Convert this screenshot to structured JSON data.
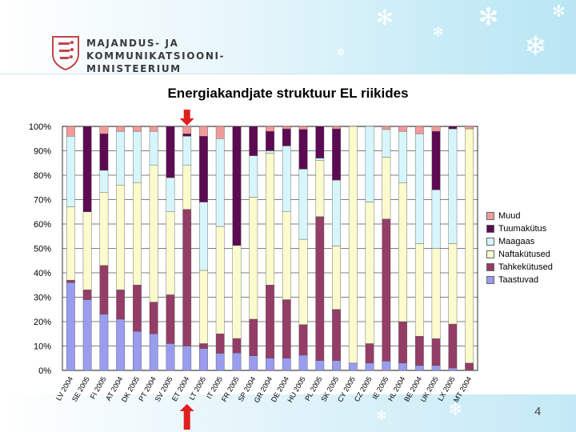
{
  "header": {
    "ministry_lines": [
      "MAJANDUS- JA",
      "KOMMUNIKATSIOONI-",
      "MINISTEERIUM"
    ]
  },
  "slide": {
    "page_number": "4"
  },
  "colors": {
    "Muud": "#f29a9a",
    "Tuumakütus": "#5c0a52",
    "Maagaas": "#d6f6fb",
    "Naftakütused": "#fbfbcd",
    "Tahkekütused": "#943d66",
    "Taastuvad": "#9a9cf0",
    "marker": "#e02020"
  },
  "chart_data": {
    "type": "bar",
    "stacked": "percent",
    "title": "Energiakandjate struktuur EL riikides",
    "y_tick_labels": [
      "0%",
      "10%",
      "20%",
      "30%",
      "40%",
      "50%",
      "60%",
      "70%",
      "80%",
      "90%",
      "100%"
    ],
    "ylim": [
      0,
      100
    ],
    "grid": true,
    "legend_position": "right",
    "categories": [
      "LV 2004",
      "SE 2005",
      "FI 2005",
      "AT 2004",
      "DK 2005",
      "PT 2004",
      "SV 2005",
      "ET 2004",
      "LT 2005",
      "IT 2005",
      "FR 2005",
      "SP 2004",
      "GR 2004",
      "DE 2004",
      "HU 2005",
      "PL 2005",
      "SK 2005",
      "CY 2005",
      "CZ 2005",
      "IE 2005",
      "HL 2004",
      "BE 2004",
      "UK 2005",
      "LX 2005",
      "MT 2004"
    ],
    "highlight_category": "ET 2004",
    "series": [
      {
        "name": "Taastuvad",
        "values": [
          36,
          29,
          23,
          21,
          16,
          15,
          11,
          10,
          9,
          7,
          6,
          6,
          5,
          5,
          5,
          4,
          4,
          3,
          3,
          3,
          3,
          2,
          2,
          1,
          0
        ]
      },
      {
        "name": "Tahkekütused",
        "values": [
          1,
          4,
          20,
          12,
          19,
          13,
          20,
          56,
          2,
          8,
          5,
          15,
          30,
          24,
          10,
          59,
          21,
          0,
          8,
          46,
          17,
          12,
          11,
          18,
          3
        ]
      },
      {
        "name": "Naftakütused",
        "values": [
          30,
          32,
          30,
          43,
          42,
          56,
          34,
          18,
          30,
          44,
          32,
          50,
          54,
          36,
          28,
          23,
          26,
          97,
          58,
          20,
          57,
          38,
          37,
          33,
          96
        ]
      },
      {
        "name": "Maagaas",
        "values": [
          29,
          0,
          9,
          22,
          21,
          14,
          14,
          12,
          28,
          36,
          0,
          17,
          1,
          27,
          23,
          1,
          27,
          0,
          31,
          9,
          21,
          45,
          24,
          47,
          0
        ]
      },
      {
        "name": "Tuumakütus",
        "values": [
          0,
          35,
          15,
          0,
          0,
          0,
          21,
          1,
          27,
          0,
          41,
          12,
          8,
          7,
          13,
          13,
          21,
          0,
          0,
          0,
          0,
          0,
          24,
          1,
          0
        ]
      },
      {
        "name": "Muud",
        "values": [
          4,
          0,
          3,
          2,
          2,
          2,
          0,
          3,
          4,
          5,
          0,
          0,
          2,
          1,
          1,
          0,
          1,
          0,
          0,
          1,
          2,
          3,
          2,
          0,
          1
        ]
      }
    ]
  }
}
